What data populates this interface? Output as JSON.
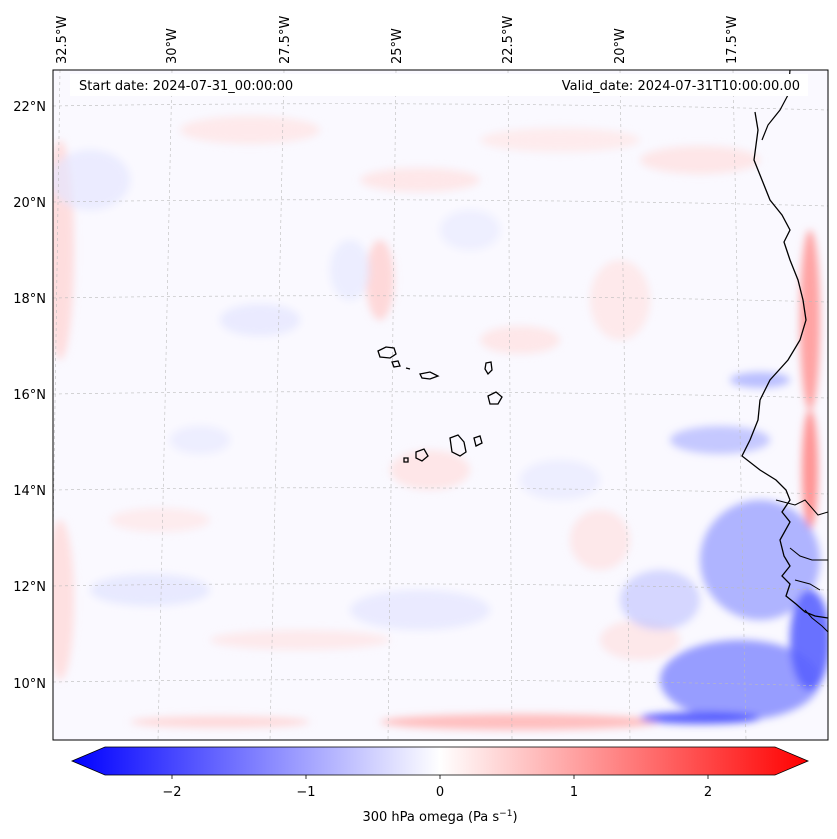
{
  "map": {
    "start_date": "Start date: 2024-07-31_00:00:00",
    "valid_date": "Valid_date: 2024-07-31T10:00:00.00",
    "lon_labels": [
      "32.5°W",
      "30°W",
      "27.5°W",
      "25°W",
      "22.5°W",
      "20°W",
      "17.5°W"
    ],
    "lat_labels": [
      "22°N",
      "20°N",
      "18°N",
      "16°N",
      "14°N",
      "12°N",
      "10°N"
    ],
    "colorbar": {
      "label": "300 hPa omega (Pa s",
      "label_sup": "−1",
      "label_tail": ")",
      "ticks": [
        "−2",
        "−1",
        "0",
        "1",
        "2"
      ],
      "tick_values": [
        -2,
        -1,
        0,
        1,
        2
      ],
      "range": [
        -2.5,
        2.5
      ],
      "colormap": "bwr",
      "neg_color": "#0000ff",
      "zero_color": "#ffffff",
      "pos_color": "#ff0000"
    },
    "extent": {
      "lon_west": -33,
      "lon_east": -15.5,
      "lat_south": 9,
      "lat_north": 22.5
    },
    "field": "300 hPa omega"
  }
}
